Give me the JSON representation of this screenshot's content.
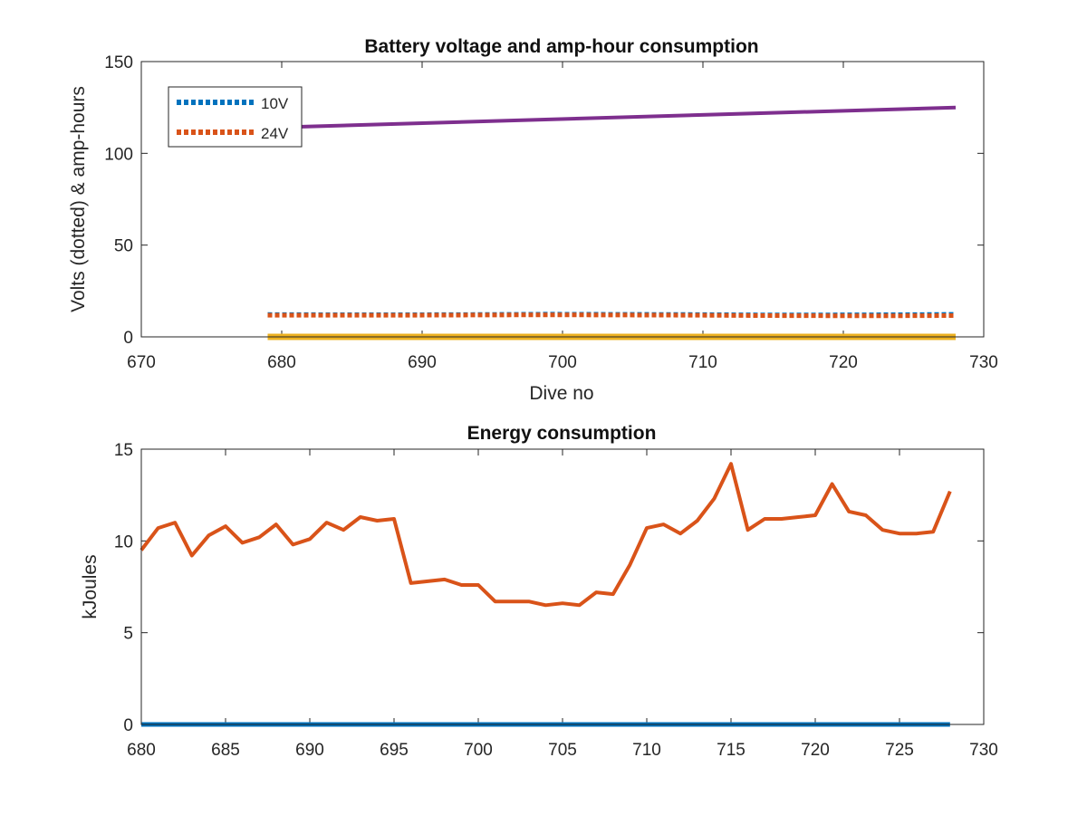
{
  "chart_data": [
    {
      "type": "line",
      "title": "Battery voltage and amp-hour consumption",
      "xlabel": "Dive no",
      "ylabel": "Volts (dotted) & amp-hours",
      "xlim": [
        670,
        730
      ],
      "ylim": [
        0,
        150
      ],
      "xticks": [
        670,
        680,
        690,
        700,
        710,
        720,
        730
      ],
      "yticks": [
        0,
        50,
        100,
        150
      ],
      "grid": false,
      "legend_position": "top-left",
      "series": [
        {
          "name": "10V",
          "style": "dotted",
          "color": "#0072BD",
          "x": [
            679,
            684,
            689,
            694,
            699,
            704,
            709,
            714,
            719,
            724,
            728
          ],
          "y": [
            12.2,
            12.1,
            12.1,
            12.2,
            12.4,
            12.3,
            12.2,
            12.0,
            12.0,
            12.1,
            12.3
          ]
        },
        {
          "name": "24V",
          "style": "dotted",
          "color": "#D95319",
          "x": [
            679,
            684,
            689,
            694,
            699,
            704,
            709,
            714,
            719,
            724,
            728
          ],
          "y": [
            11.8,
            11.8,
            11.8,
            11.9,
            12.0,
            11.9,
            11.8,
            11.6,
            11.5,
            11.5,
            11.6
          ]
        },
        {
          "style": "solid",
          "color": "#EDB120",
          "x": [
            679,
            728
          ],
          "y": [
            0,
            0
          ]
        },
        {
          "style": "solid",
          "color": "#7E2F8E",
          "x": [
            679,
            728
          ],
          "y": [
            114,
            125
          ]
        }
      ]
    },
    {
      "type": "line",
      "title": "Energy consumption",
      "xlabel": "",
      "ylabel": "kJoules",
      "xlim": [
        680,
        730
      ],
      "ylim": [
        0,
        15
      ],
      "xticks": [
        680,
        685,
        690,
        695,
        700,
        705,
        710,
        715,
        720,
        725,
        730
      ],
      "yticks": [
        0,
        5,
        10,
        15
      ],
      "grid": false,
      "series": [
        {
          "color": "#D95319",
          "x": [
            680,
            681,
            682,
            683,
            684,
            685,
            686,
            687,
            688,
            689,
            690,
            691,
            692,
            693,
            694,
            695,
            696,
            697,
            698,
            699,
            700,
            701,
            702,
            703,
            704,
            705,
            706,
            707,
            708,
            709,
            710,
            711,
            712,
            713,
            714,
            715,
            716,
            717,
            718,
            719,
            720,
            721,
            722,
            723,
            724,
            725,
            726,
            727,
            728
          ],
          "y": [
            9.5,
            10.7,
            11.0,
            9.2,
            10.3,
            10.8,
            9.9,
            10.2,
            10.9,
            9.8,
            10.1,
            11.0,
            10.6,
            11.3,
            11.1,
            11.2,
            7.7,
            7.8,
            7.9,
            7.6,
            7.6,
            6.7,
            6.7,
            6.7,
            6.5,
            6.6,
            6.5,
            7.2,
            7.1,
            8.7,
            10.7,
            10.9,
            10.4,
            11.1,
            12.3,
            14.2,
            10.6,
            11.2,
            11.2,
            11.3,
            11.4,
            13.1,
            11.6,
            11.4,
            10.6,
            10.4,
            10.4,
            10.5,
            12.7
          ]
        },
        {
          "color": "#0072BD",
          "x": [
            680,
            728
          ],
          "y": [
            0,
            0
          ]
        }
      ]
    }
  ]
}
